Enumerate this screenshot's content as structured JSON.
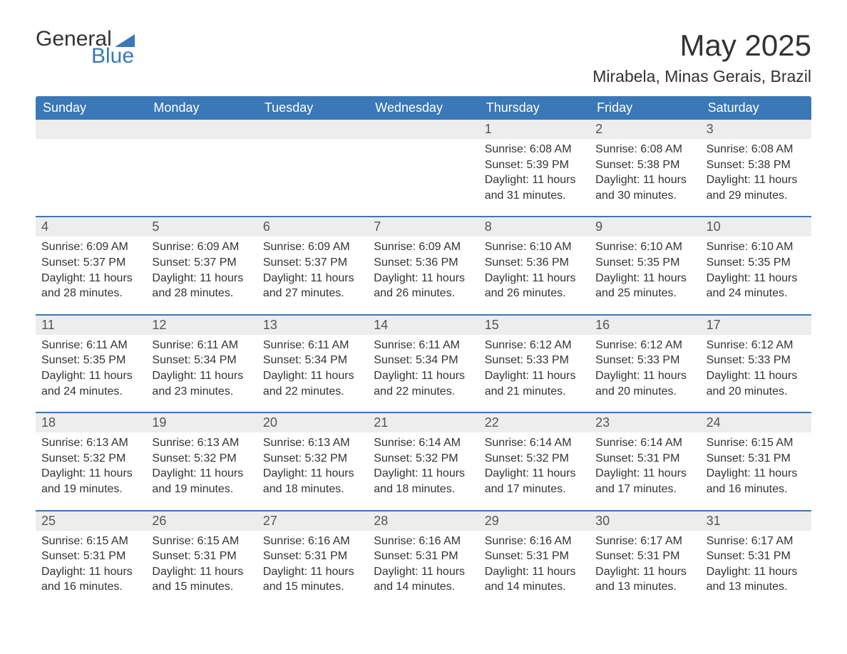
{
  "logo": {
    "text1": "General",
    "text2": "Blue",
    "shape_color": "#3a78b7"
  },
  "title": "May 2025",
  "location": "Mirabela, Minas Gerais, Brazil",
  "colors": {
    "header_bg": "#3a78b7",
    "header_text": "#ffffff",
    "daynum_bg": "#ededed",
    "text": "#333333",
    "row_border": "#3a78b7"
  },
  "weekdays": [
    "Sunday",
    "Monday",
    "Tuesday",
    "Wednesday",
    "Thursday",
    "Friday",
    "Saturday"
  ],
  "weeks": [
    [
      {
        "blank": true
      },
      {
        "blank": true
      },
      {
        "blank": true
      },
      {
        "blank": true
      },
      {
        "num": "1",
        "sunrise": "6:08 AM",
        "sunset": "5:39 PM",
        "daylight": "11 hours and 31 minutes."
      },
      {
        "num": "2",
        "sunrise": "6:08 AM",
        "sunset": "5:38 PM",
        "daylight": "11 hours and 30 minutes."
      },
      {
        "num": "3",
        "sunrise": "6:08 AM",
        "sunset": "5:38 PM",
        "daylight": "11 hours and 29 minutes."
      }
    ],
    [
      {
        "num": "4",
        "sunrise": "6:09 AM",
        "sunset": "5:37 PM",
        "daylight": "11 hours and 28 minutes."
      },
      {
        "num": "5",
        "sunrise": "6:09 AM",
        "sunset": "5:37 PM",
        "daylight": "11 hours and 28 minutes."
      },
      {
        "num": "6",
        "sunrise": "6:09 AM",
        "sunset": "5:37 PM",
        "daylight": "11 hours and 27 minutes."
      },
      {
        "num": "7",
        "sunrise": "6:09 AM",
        "sunset": "5:36 PM",
        "daylight": "11 hours and 26 minutes."
      },
      {
        "num": "8",
        "sunrise": "6:10 AM",
        "sunset": "5:36 PM",
        "daylight": "11 hours and 26 minutes."
      },
      {
        "num": "9",
        "sunrise": "6:10 AM",
        "sunset": "5:35 PM",
        "daylight": "11 hours and 25 minutes."
      },
      {
        "num": "10",
        "sunrise": "6:10 AM",
        "sunset": "5:35 PM",
        "daylight": "11 hours and 24 minutes."
      }
    ],
    [
      {
        "num": "11",
        "sunrise": "6:11 AM",
        "sunset": "5:35 PM",
        "daylight": "11 hours and 24 minutes."
      },
      {
        "num": "12",
        "sunrise": "6:11 AM",
        "sunset": "5:34 PM",
        "daylight": "11 hours and 23 minutes."
      },
      {
        "num": "13",
        "sunrise": "6:11 AM",
        "sunset": "5:34 PM",
        "daylight": "11 hours and 22 minutes."
      },
      {
        "num": "14",
        "sunrise": "6:11 AM",
        "sunset": "5:34 PM",
        "daylight": "11 hours and 22 minutes."
      },
      {
        "num": "15",
        "sunrise": "6:12 AM",
        "sunset": "5:33 PM",
        "daylight": "11 hours and 21 minutes."
      },
      {
        "num": "16",
        "sunrise": "6:12 AM",
        "sunset": "5:33 PM",
        "daylight": "11 hours and 20 minutes."
      },
      {
        "num": "17",
        "sunrise": "6:12 AM",
        "sunset": "5:33 PM",
        "daylight": "11 hours and 20 minutes."
      }
    ],
    [
      {
        "num": "18",
        "sunrise": "6:13 AM",
        "sunset": "5:32 PM",
        "daylight": "11 hours and 19 minutes."
      },
      {
        "num": "19",
        "sunrise": "6:13 AM",
        "sunset": "5:32 PM",
        "daylight": "11 hours and 19 minutes."
      },
      {
        "num": "20",
        "sunrise": "6:13 AM",
        "sunset": "5:32 PM",
        "daylight": "11 hours and 18 minutes."
      },
      {
        "num": "21",
        "sunrise": "6:14 AM",
        "sunset": "5:32 PM",
        "daylight": "11 hours and 18 minutes."
      },
      {
        "num": "22",
        "sunrise": "6:14 AM",
        "sunset": "5:32 PM",
        "daylight": "11 hours and 17 minutes."
      },
      {
        "num": "23",
        "sunrise": "6:14 AM",
        "sunset": "5:31 PM",
        "daylight": "11 hours and 17 minutes."
      },
      {
        "num": "24",
        "sunrise": "6:15 AM",
        "sunset": "5:31 PM",
        "daylight": "11 hours and 16 minutes."
      }
    ],
    [
      {
        "num": "25",
        "sunrise": "6:15 AM",
        "sunset": "5:31 PM",
        "daylight": "11 hours and 16 minutes."
      },
      {
        "num": "26",
        "sunrise": "6:15 AM",
        "sunset": "5:31 PM",
        "daylight": "11 hours and 15 minutes."
      },
      {
        "num": "27",
        "sunrise": "6:16 AM",
        "sunset": "5:31 PM",
        "daylight": "11 hours and 15 minutes."
      },
      {
        "num": "28",
        "sunrise": "6:16 AM",
        "sunset": "5:31 PM",
        "daylight": "11 hours and 14 minutes."
      },
      {
        "num": "29",
        "sunrise": "6:16 AM",
        "sunset": "5:31 PM",
        "daylight": "11 hours and 14 minutes."
      },
      {
        "num": "30",
        "sunrise": "6:17 AM",
        "sunset": "5:31 PM",
        "daylight": "11 hours and 13 minutes."
      },
      {
        "num": "31",
        "sunrise": "6:17 AM",
        "sunset": "5:31 PM",
        "daylight": "11 hours and 13 minutes."
      }
    ]
  ],
  "labels": {
    "sunrise": "Sunrise:",
    "sunset": "Sunset:",
    "daylight": "Daylight:"
  }
}
